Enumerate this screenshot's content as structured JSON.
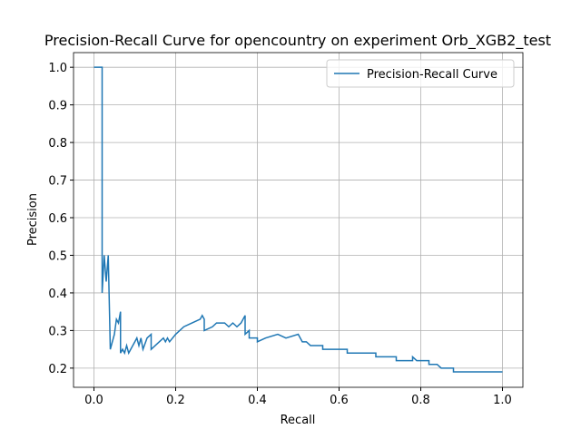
{
  "chart_data": {
    "type": "line",
    "title": "Precision-Recall Curve for opencountry on experiment Orb_XGB2_test",
    "x_label": "Recall",
    "y_label": "Precision",
    "x": [
      0,
      0.02,
      0.02,
      0.025,
      0.03,
      0.035,
      0.04,
      0.05,
      0.055,
      0.06,
      0.065,
      0.065,
      0.07,
      0.075,
      0.08,
      0.085,
      0.09,
      0.1,
      0.105,
      0.11,
      0.115,
      0.12,
      0.13,
      0.14,
      0.14,
      0.16,
      0.17,
      0.175,
      0.18,
      0.185,
      0.2,
      0.22,
      0.24,
      0.26,
      0.265,
      0.27,
      0.27,
      0.29,
      0.3,
      0.32,
      0.33,
      0.34,
      0.35,
      0.36,
      0.37,
      0.37,
      0.38,
      0.38,
      0.4,
      0.4,
      0.42,
      0.45,
      0.47,
      0.5,
      0.51,
      0.52,
      0.53,
      0.56,
      0.56,
      0.58,
      0.6,
      0.62,
      0.62,
      0.64,
      0.66,
      0.69,
      0.69,
      0.72,
      0.74,
      0.74,
      0.78,
      0.78,
      0.79,
      0.82,
      0.82,
      0.84,
      0.85,
      0.88,
      0.88,
      0.9,
      0.91,
      1.0
    ],
    "series": [
      {
        "name": "Precision-Recall Curve",
        "color": "#1f77b4",
        "values": [
          1,
          1,
          0.4,
          0.5,
          0.43,
          0.5,
          0.25,
          0.29,
          0.33,
          0.32,
          0.35,
          0.24,
          0.25,
          0.24,
          0.26,
          0.24,
          0.25,
          0.27,
          0.28,
          0.26,
          0.28,
          0.25,
          0.28,
          0.29,
          0.25,
          0.27,
          0.28,
          0.27,
          0.28,
          0.27,
          0.29,
          0.31,
          0.32,
          0.33,
          0.34,
          0.33,
          0.3,
          0.31,
          0.32,
          0.32,
          0.31,
          0.32,
          0.31,
          0.32,
          0.34,
          0.29,
          0.3,
          0.28,
          0.28,
          0.27,
          0.28,
          0.29,
          0.28,
          0.29,
          0.27,
          0.27,
          0.26,
          0.26,
          0.25,
          0.25,
          0.25,
          0.25,
          0.24,
          0.24,
          0.24,
          0.24,
          0.23,
          0.23,
          0.23,
          0.22,
          0.22,
          0.23,
          0.22,
          0.22,
          0.21,
          0.21,
          0.2,
          0.2,
          0.19,
          0.19,
          0.19,
          0.19
        ]
      }
    ],
    "xlim": [
      -0.05,
      1.05
    ],
    "ylim": [
      0.149,
      1.039
    ],
    "xticks": [
      {
        "value": 0,
        "label": "0.0"
      },
      0.2,
      0.4,
      0.6,
      0.8,
      {
        "value": 1,
        "label": "1.0"
      }
    ],
    "yticks": [
      0.2,
      0.3,
      0.4,
      0.5,
      0.6,
      0.7,
      0.8,
      0.9,
      {
        "value": 1,
        "label": "1.0"
      }
    ],
    "grid": true,
    "legend": "upper right"
  }
}
